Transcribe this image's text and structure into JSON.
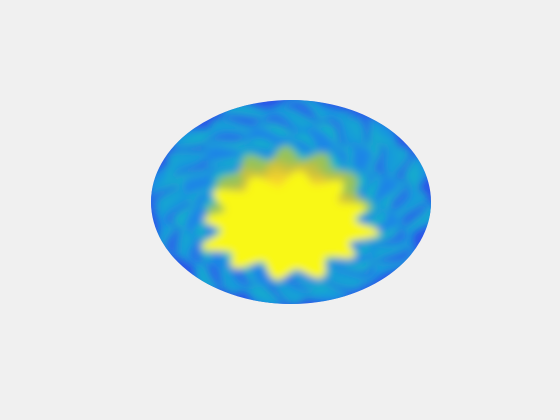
{
  "figure": {
    "background_color": "#f0f0f0"
  },
  "chart_data": {
    "type": "heatmap",
    "title": "",
    "xlabel": "",
    "ylabel": "",
    "surface_shape": "ellipse",
    "view": "3d-perspective",
    "axes_visible": false,
    "grid": false,
    "colorbar": false,
    "colormap": "parula",
    "colors": [
      "#3d26a8",
      "#2f54e8",
      "#1a8ee6",
      "#16b4c4",
      "#5dc87a",
      "#c7bf3c",
      "#f9d52a",
      "#f9f816"
    ],
    "value_range": [
      0,
      1
    ],
    "center_value": 1.0,
    "edge_value": 0.2,
    "lobe_count": 12,
    "petal_ring_count": 10
  }
}
